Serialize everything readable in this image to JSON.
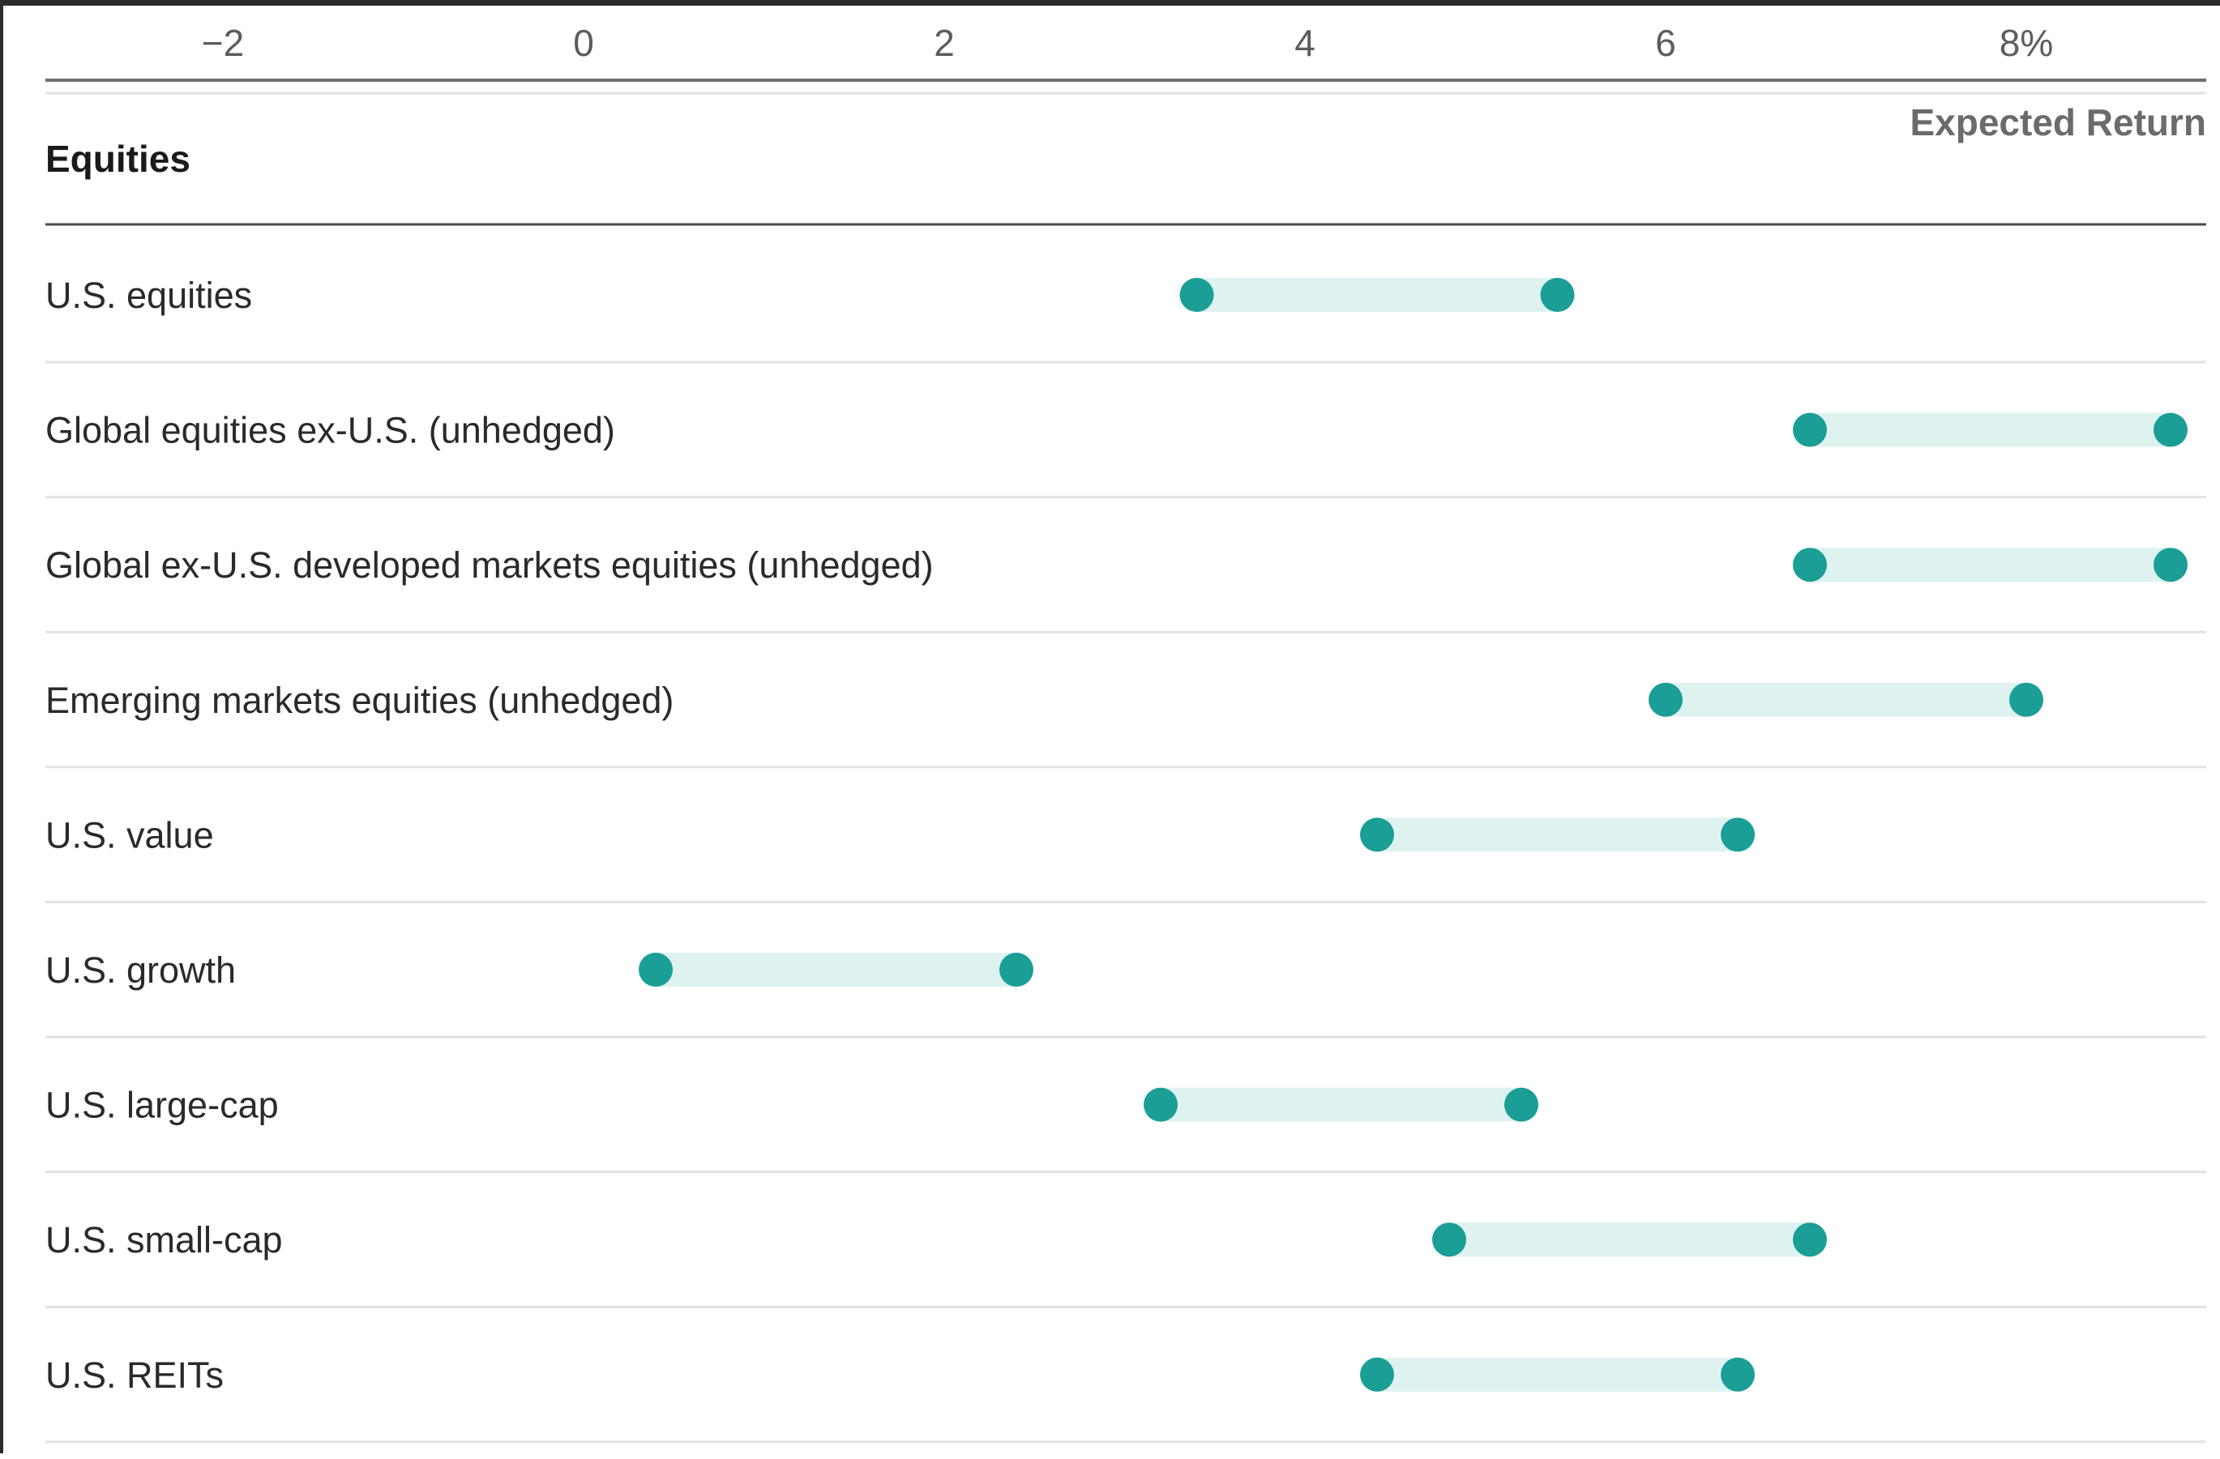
{
  "chart_data": {
    "type": "range_dot",
    "section_title": "Equities",
    "x_axis_label": "Expected Return",
    "x_ticks": [
      {
        "value": -2,
        "label": "−2"
      },
      {
        "value": 0,
        "label": "0"
      },
      {
        "value": 2,
        "label": "2"
      },
      {
        "value": 4,
        "label": "4"
      },
      {
        "value": 6,
        "label": "6"
      },
      {
        "value": 8,
        "label": "8%"
      }
    ],
    "xlim": [
      -3.0,
      9.0
    ],
    "categories": [
      "U.S. equities",
      "Global equities ex-U.S. (unhedged)",
      "Global ex-U.S. developed markets equities (unhedged)",
      "Emerging markets equities (unhedged)",
      "U.S. value",
      "U.S. growth",
      "U.S. large-cap",
      "U.S. small-cap",
      "U.S. REITs"
    ],
    "ranges": [
      {
        "low": 3.4,
        "high": 5.4
      },
      {
        "low": 6.8,
        "high": 8.8
      },
      {
        "low": 6.8,
        "high": 8.8
      },
      {
        "low": 6.0,
        "high": 8.0
      },
      {
        "low": 4.4,
        "high": 6.4
      },
      {
        "low": 0.4,
        "high": 2.4
      },
      {
        "low": 3.2,
        "high": 5.2
      },
      {
        "low": 4.8,
        "high": 6.8
      },
      {
        "low": 4.4,
        "high": 6.4
      }
    ],
    "colors": {
      "dot": "#1a9e96",
      "band": "#def3ef",
      "rule": "#bdbdbd",
      "row_rule": "#e2e2e2"
    }
  }
}
